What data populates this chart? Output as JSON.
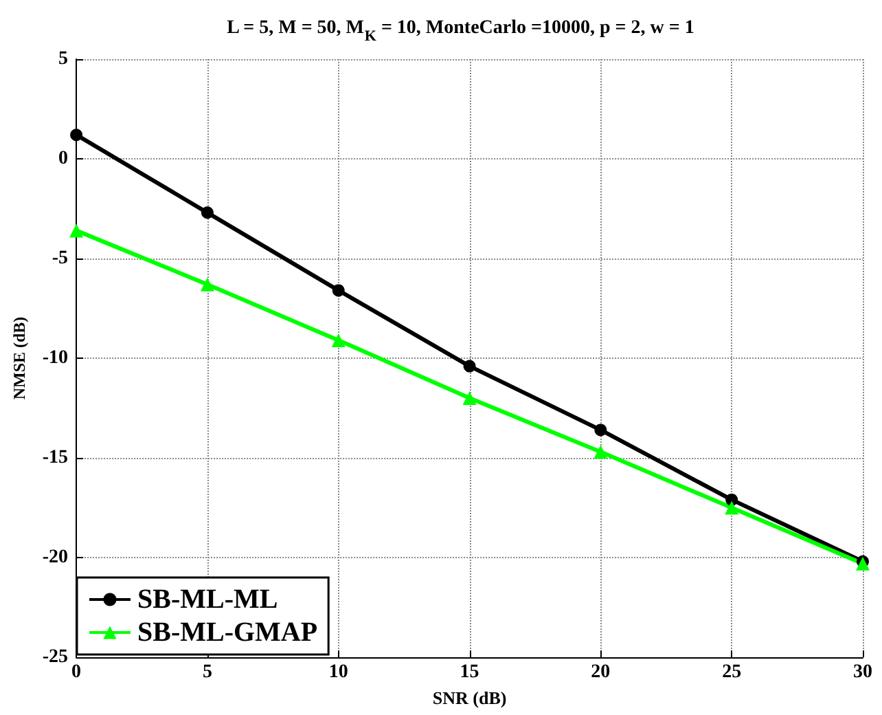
{
  "chart_data": {
    "type": "line",
    "title": "L = 5, M = 50, M$_{K}$ = 10, MonteCarlo =10000, p = 2, w = 1",
    "xlabel": "SNR (dB)",
    "ylabel": "NMSE (dB)",
    "x": [
      0,
      5,
      10,
      15,
      20,
      25,
      30
    ],
    "series": [
      {
        "name": "SB-ML-ML",
        "color": "#000000",
        "marker": "circle",
        "values": [
          1.2,
          -2.7,
          -6.6,
          -10.4,
          -13.6,
          -17.1,
          -20.2
        ]
      },
      {
        "name": "SB-ML-GMAP",
        "color": "#00ff00",
        "marker": "triangle",
        "values": [
          -3.6,
          -6.3,
          -9.1,
          -12.0,
          -14.7,
          -17.5,
          -20.3
        ]
      }
    ],
    "xlim": [
      0,
      30
    ],
    "xticks": [
      0,
      5,
      10,
      15,
      20,
      25,
      30
    ],
    "ylim": [
      -25,
      5
    ],
    "yticks": [
      -25,
      -20,
      -15,
      -10,
      -5,
      0,
      5
    ],
    "grid": true,
    "legend": "bottom left",
    "line_style": "solid"
  }
}
